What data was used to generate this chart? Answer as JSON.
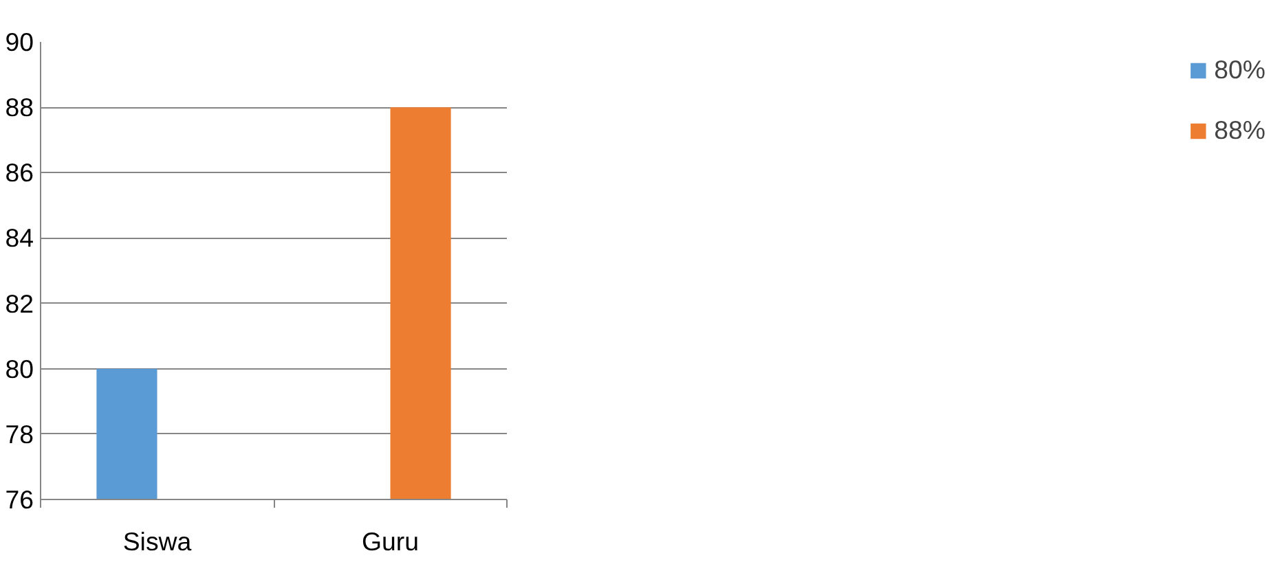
{
  "chart_data": {
    "type": "bar",
    "categories": [
      "Siswa",
      "Guru"
    ],
    "series": [
      {
        "name": "80%",
        "color": "#5b9bd5",
        "values": [
          80,
          null
        ]
      },
      {
        "name": "88%",
        "color": "#ed7d31",
        "values": [
          null,
          88
        ]
      }
    ],
    "ylim": [
      76,
      90
    ],
    "yticks": [
      76,
      78,
      80,
      82,
      84,
      86,
      88,
      90
    ],
    "grid": "y",
    "legend": "right"
  }
}
